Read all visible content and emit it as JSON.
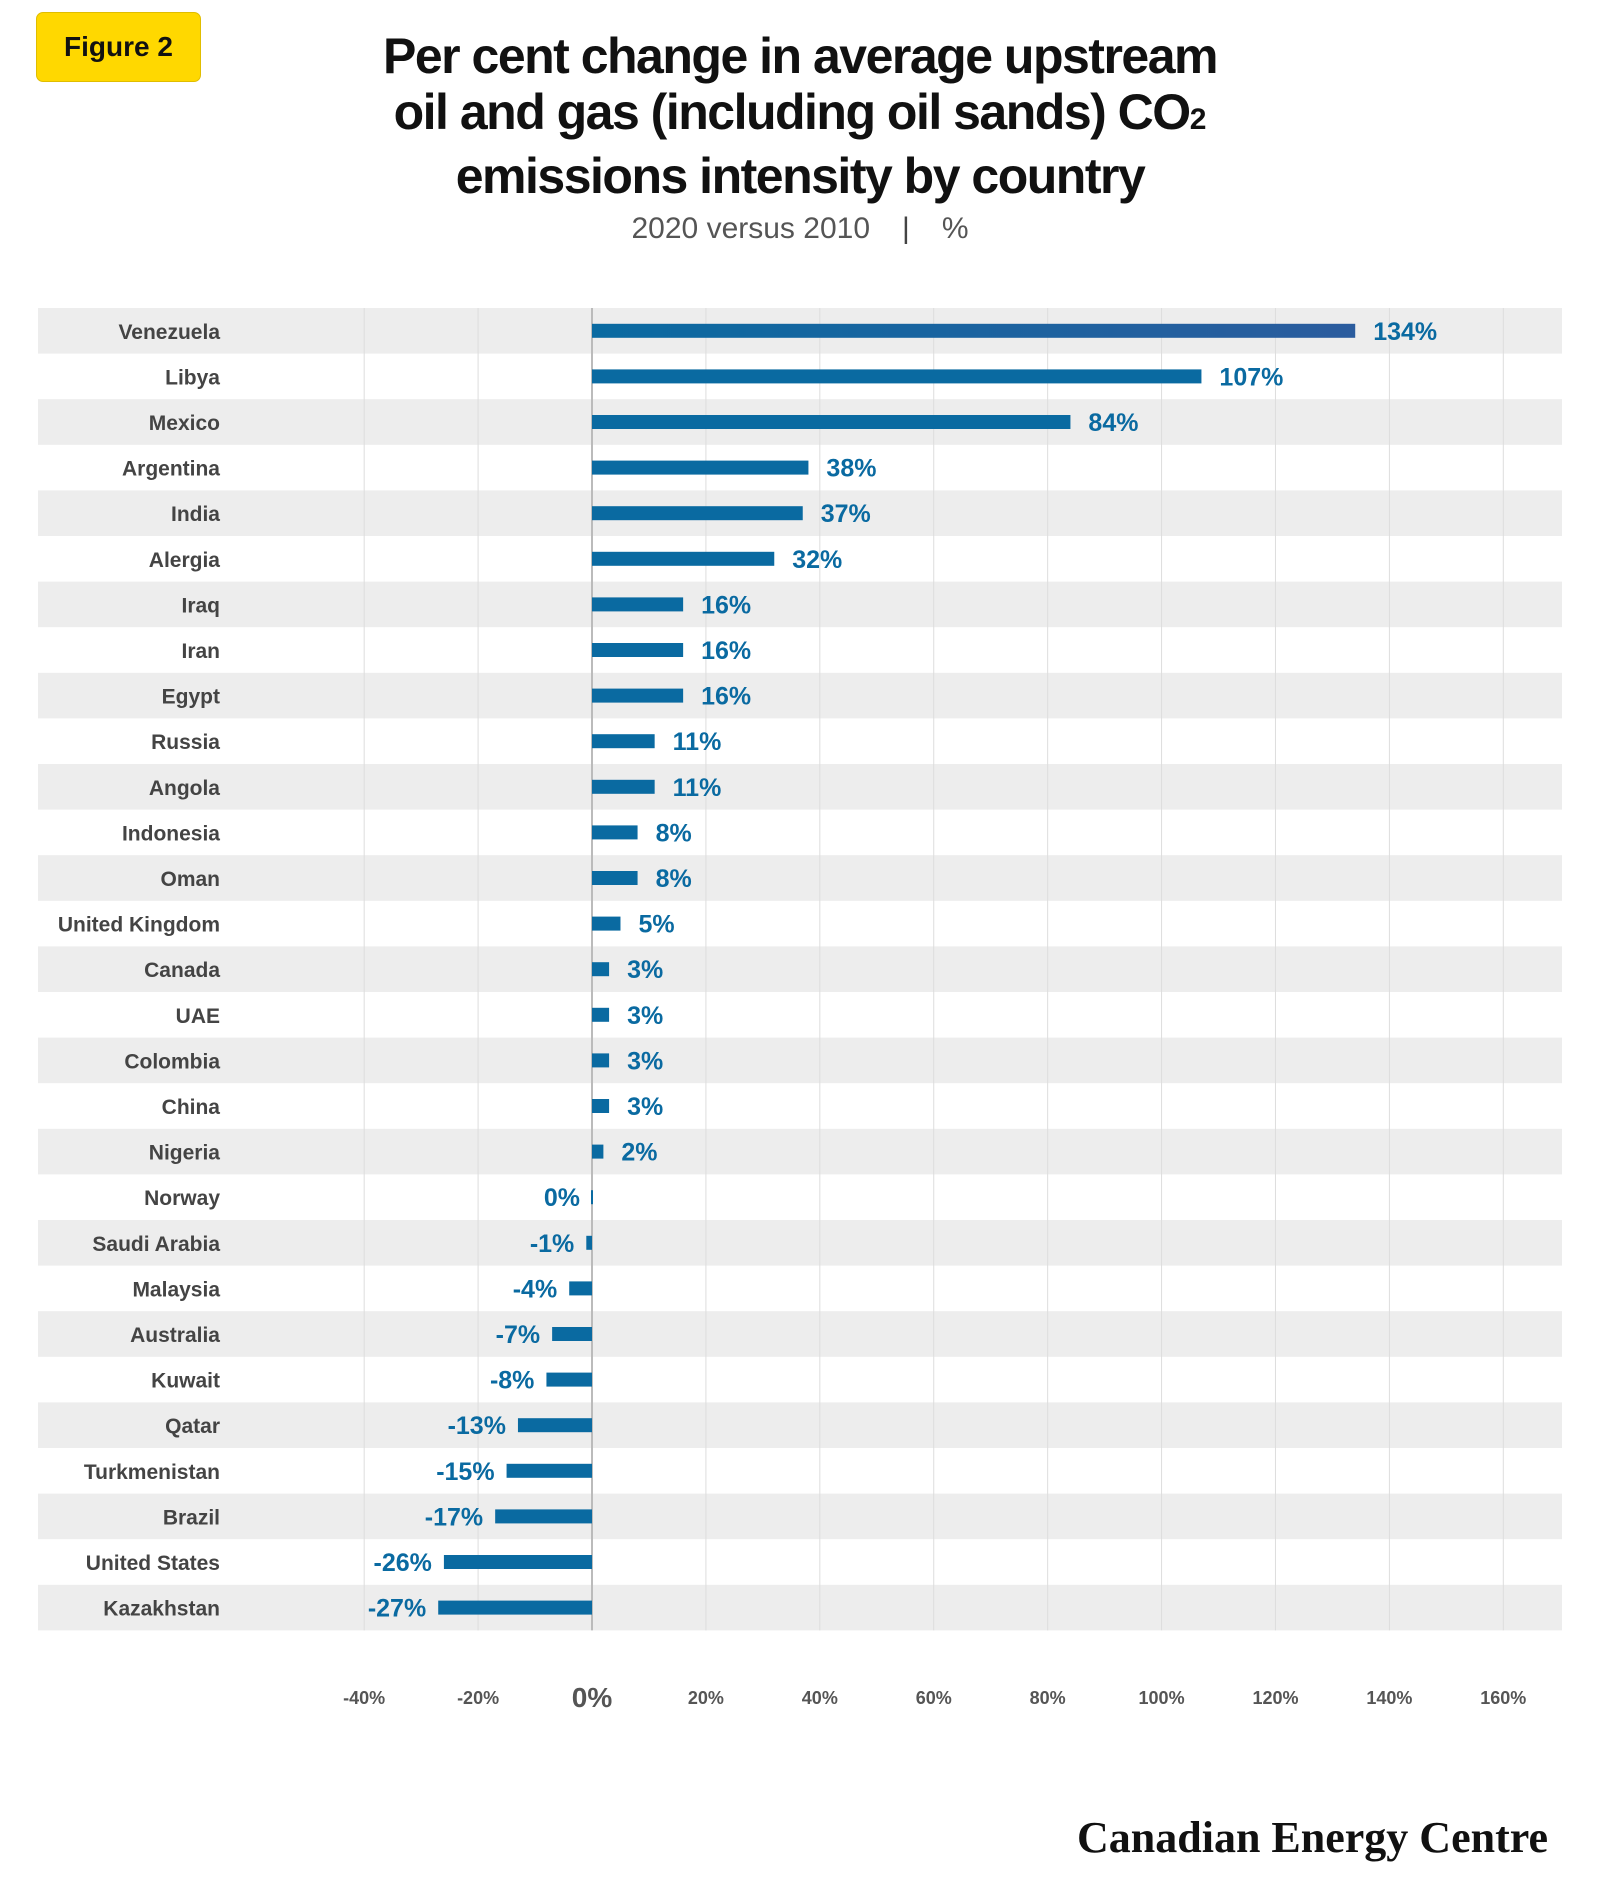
{
  "badge": "Figure 2",
  "title_lines": [
    "Per cent change in average upstream",
    "oil and gas (including oil sands) CO",
    "emissions intensity by country"
  ],
  "title_subscript": "2",
  "subtitle_left": "2020 versus 2010",
  "subtitle_sep": "|",
  "subtitle_right": "%",
  "brand": "Canadian Energy Centre",
  "colors": {
    "bar": "#0A6AA1",
    "bar_gradient_end": "#2B5C9E",
    "label": "#0A6AA1",
    "row_stripe": "#EDEDED",
    "grid": "#DDDDDD",
    "zero_line": "#BBBBBB"
  },
  "chart_data": {
    "type": "bar",
    "orientation": "horizontal",
    "categories": [
      "Venezuela",
      "Libya",
      "Mexico",
      "Argentina",
      "India",
      "Alergia",
      "Iraq",
      "Iran",
      "Egypt",
      "Russia",
      "Angola",
      "Indonesia",
      "Oman",
      "United Kingdom",
      "Canada",
      "UAE",
      "Colombia",
      "China",
      "Nigeria",
      "Norway",
      "Saudi Arabia",
      "Malaysia",
      "Australia",
      "Kuwait",
      "Qatar",
      "Turkmenistan",
      "Brazil",
      "United States",
      "Kazakhstan"
    ],
    "values": [
      134,
      107,
      84,
      38,
      37,
      32,
      16,
      16,
      16,
      11,
      11,
      8,
      8,
      5,
      3,
      3,
      3,
      3,
      2,
      0,
      -1,
      -4,
      -7,
      -8,
      -13,
      -15,
      -17,
      -26,
      -27
    ],
    "value_labels": [
      "134%",
      "107%",
      "84%",
      "38%",
      "37%",
      "32%",
      "16%",
      "16%",
      "16%",
      "11%",
      "11%",
      "8%",
      "8%",
      "5%",
      "3%",
      "3%",
      "3%",
      "3%",
      "2%",
      "0%",
      "-1%",
      "-4%",
      "-7%",
      "-8%",
      "-13%",
      "-15%",
      "-17%",
      "-26%",
      "-27%"
    ],
    "x_ticks": [
      -40,
      -20,
      0,
      20,
      40,
      60,
      80,
      100,
      120,
      140,
      160
    ],
    "x_tick_labels": [
      "-40%",
      "-20%",
      "0%",
      "20%",
      "40%",
      "60%",
      "80%",
      "100%",
      "120%",
      "140%",
      "160%"
    ],
    "xlim": [
      -46,
      184
    ],
    "grid": true,
    "legend": "none"
  }
}
